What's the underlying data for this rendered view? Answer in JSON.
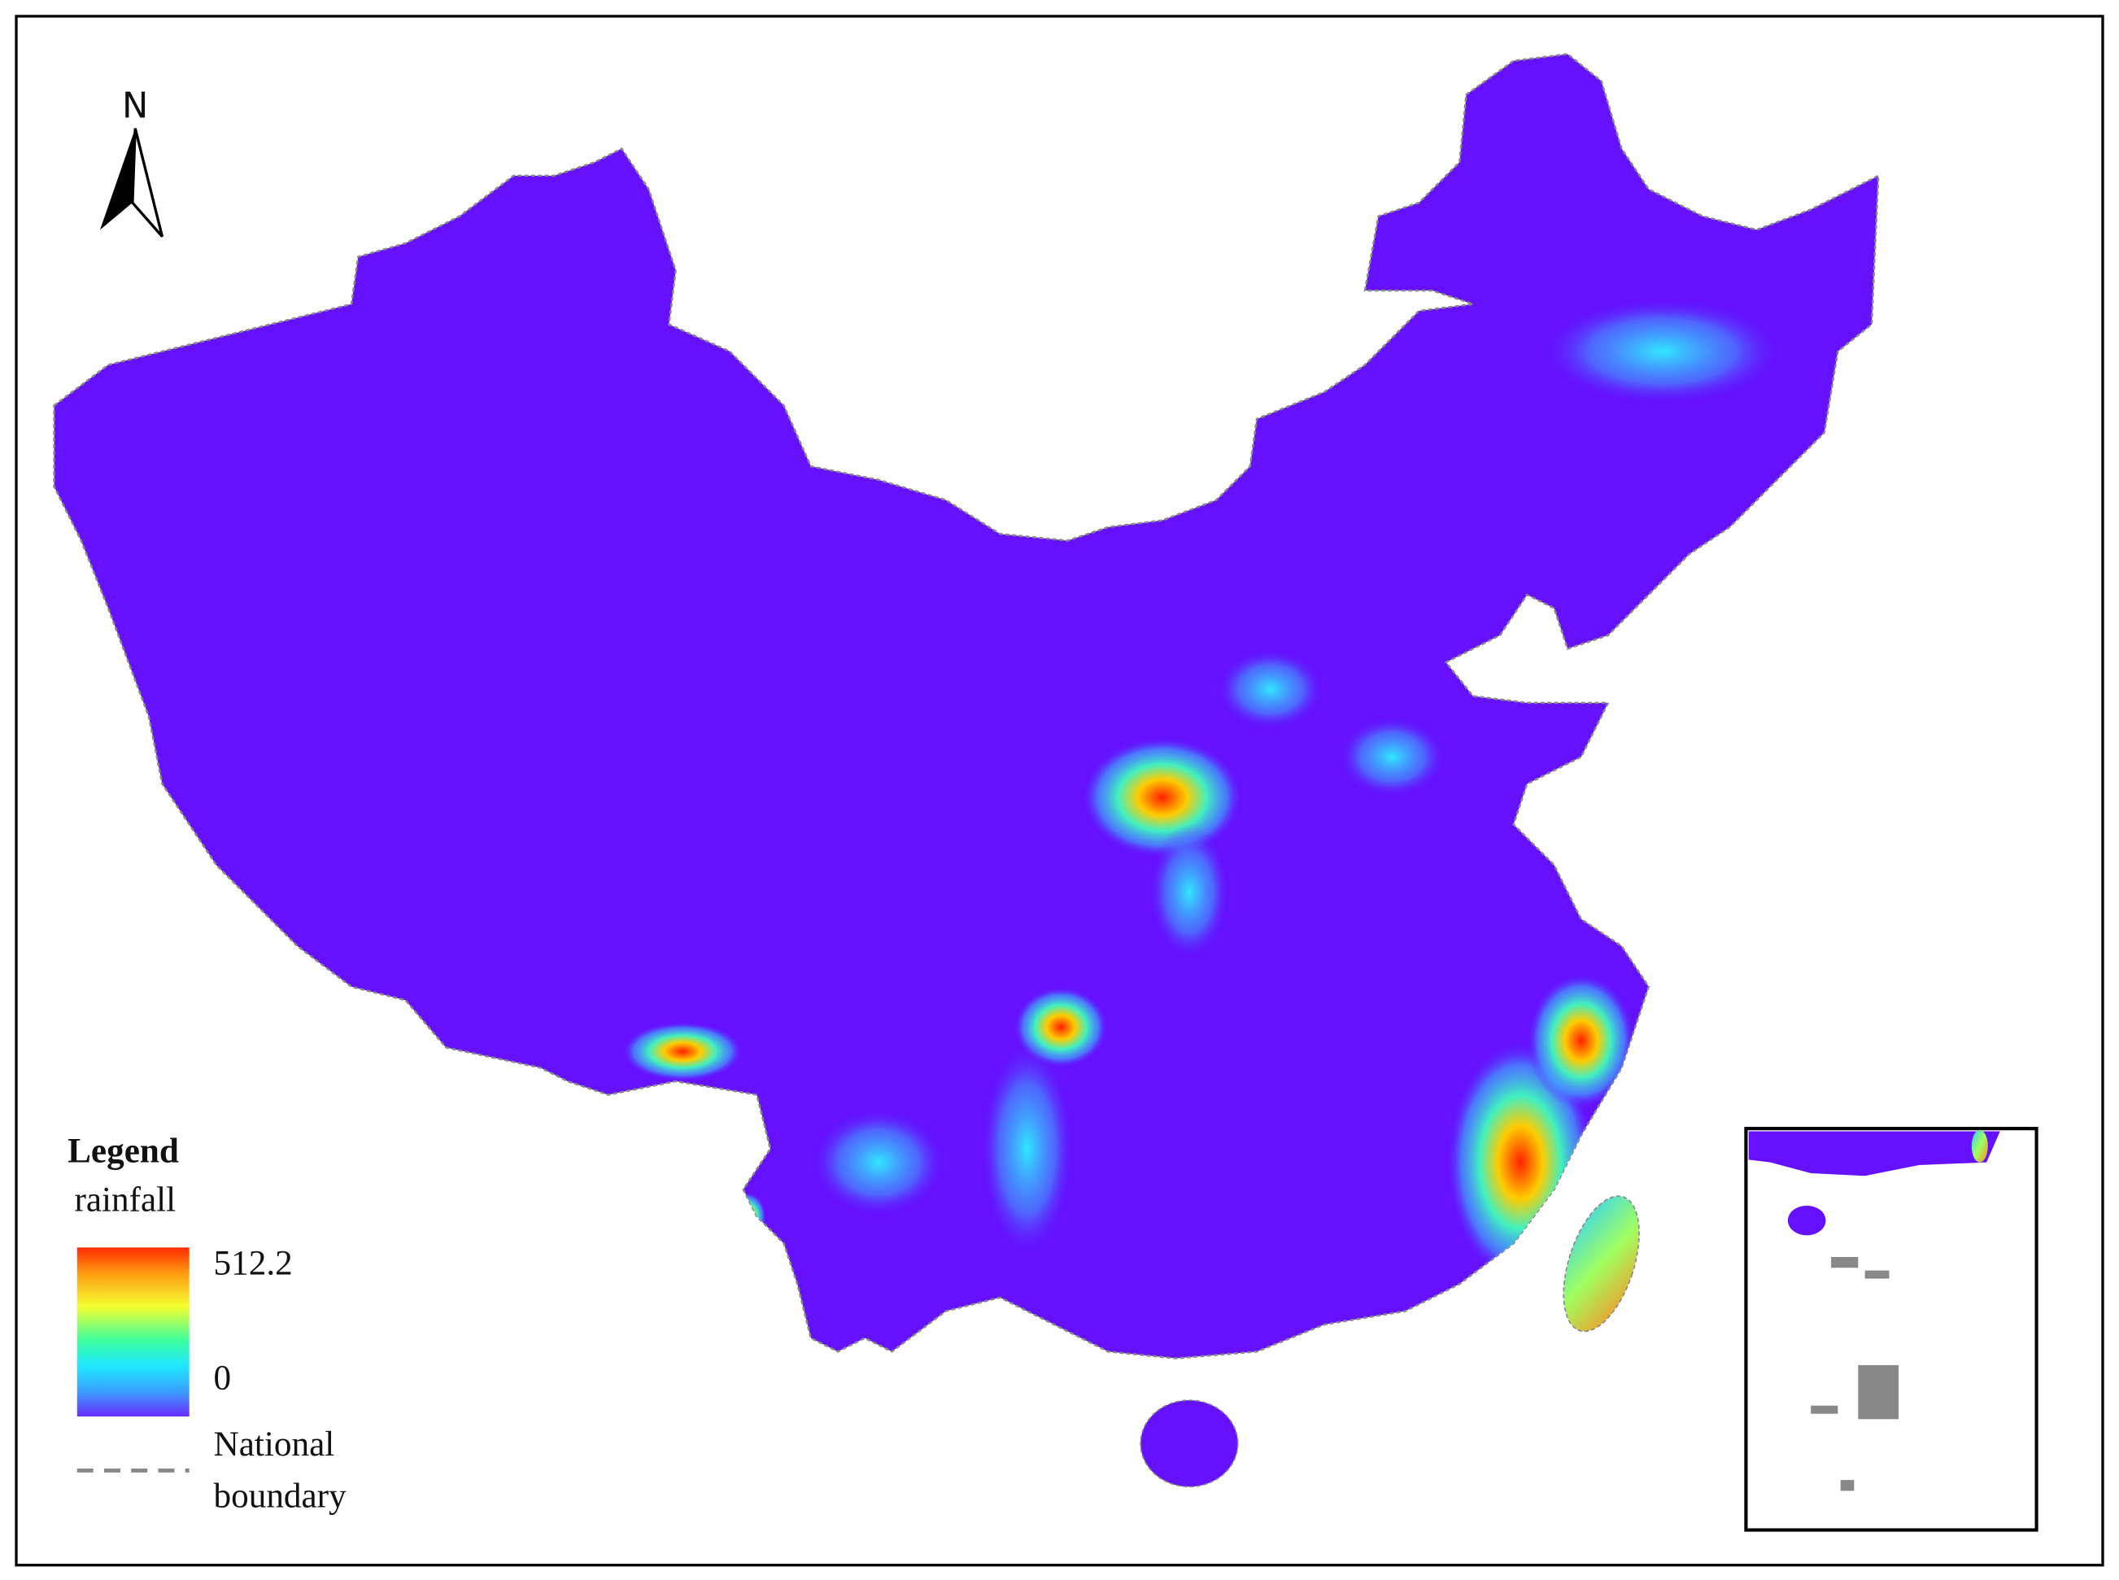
{
  "north_arrow": {
    "label": "N"
  },
  "legend": {
    "title": "Legend",
    "layer": "rainfall",
    "max_label": "512.2",
    "min_label": "0",
    "boundary_label_lines": [
      "National",
      "boundary"
    ]
  }
}
